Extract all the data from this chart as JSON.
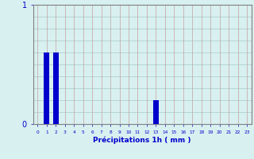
{
  "hours": [
    0,
    1,
    2,
    3,
    4,
    5,
    6,
    7,
    8,
    9,
    10,
    11,
    12,
    13,
    14,
    15,
    16,
    17,
    18,
    19,
    20,
    21,
    22,
    23
  ],
  "values": [
    0,
    0.6,
    0.6,
    0,
    0,
    0,
    0,
    0,
    0,
    0,
    0,
    0,
    0,
    0.2,
    0,
    0,
    0,
    0,
    0,
    0,
    0,
    0,
    0,
    0
  ],
  "bar_color": "#0000cc",
  "background_color": "#d8f0f0",
  "grid_color_v": "#c8a0a0",
  "grid_color_h": "#a8c8c8",
  "xlabel": "Précipitations 1h ( mm )",
  "xlabel_color": "#0000cc",
  "tick_color": "#0000cc",
  "ylim": [
    0,
    1.0
  ],
  "xlim": [
    -0.5,
    23.5
  ],
  "yticks": [
    0,
    1
  ],
  "xticks": [
    0,
    1,
    2,
    3,
    4,
    5,
    6,
    7,
    8,
    9,
    10,
    11,
    12,
    13,
    14,
    15,
    16,
    17,
    18,
    19,
    20,
    21,
    22,
    23
  ]
}
